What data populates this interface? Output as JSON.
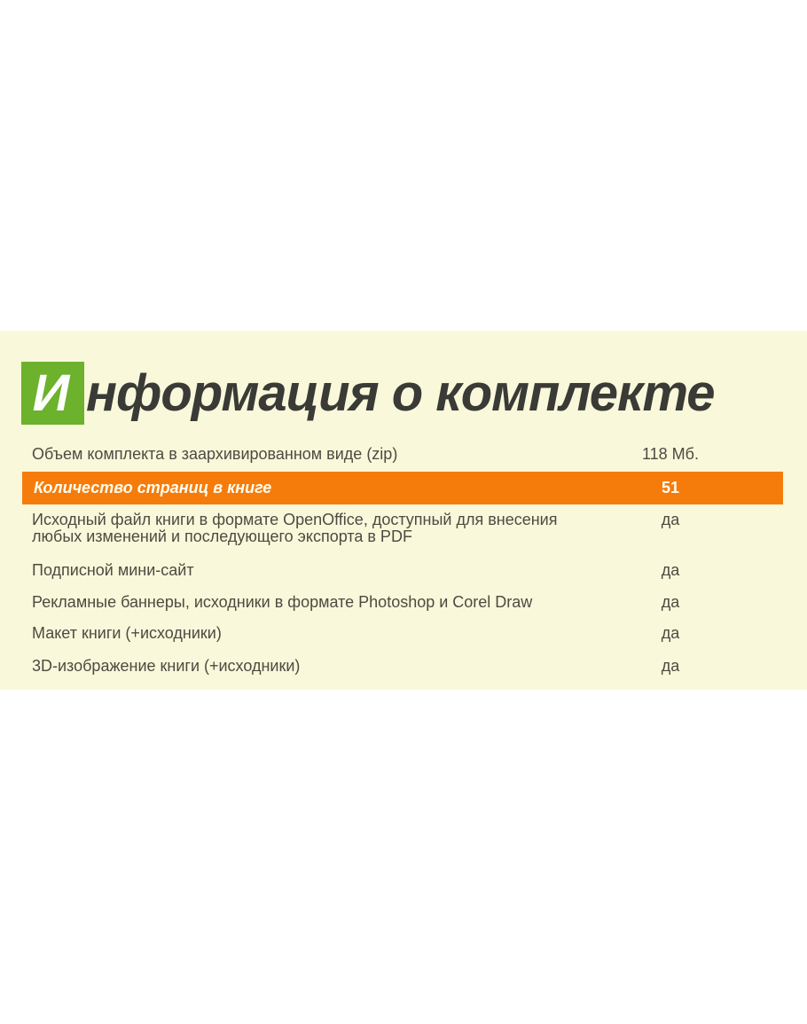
{
  "title": {
    "initial": "И",
    "rest": "нформация о комплекте"
  },
  "rows": [
    {
      "label": "Объем комплекта в заархивированном виде (zip)",
      "value": "118 Мб.",
      "highlighted": false
    },
    {
      "label": "Количество страниц в книге",
      "value": "51",
      "highlighted": true
    },
    {
      "label": "Исходный файл книги в формате OpenOffice, доступный для внесения любых изменений и последующего экспорта в PDF",
      "value": "да",
      "highlighted": false
    },
    {
      "label": "Подписной мини-сайт",
      "value": "да",
      "highlighted": false
    },
    {
      "label": "Рекламные баннеры, исходники в формате Photoshop и Corel Draw",
      "value": "да",
      "highlighted": false
    },
    {
      "label": "Макет книги (+исходники)",
      "value": "да",
      "highlighted": false
    },
    {
      "label": "3D-изображение книги (+исходники)",
      "value": "да",
      "highlighted": false
    }
  ],
  "colors": {
    "panel_background": "#f9f8db",
    "highlight_orange": "#f57c0b",
    "accent_green": "#6cb22c",
    "title_text": "#3a3a36",
    "body_text": "#4c4b40",
    "highlight_text": "#fffdf0"
  }
}
